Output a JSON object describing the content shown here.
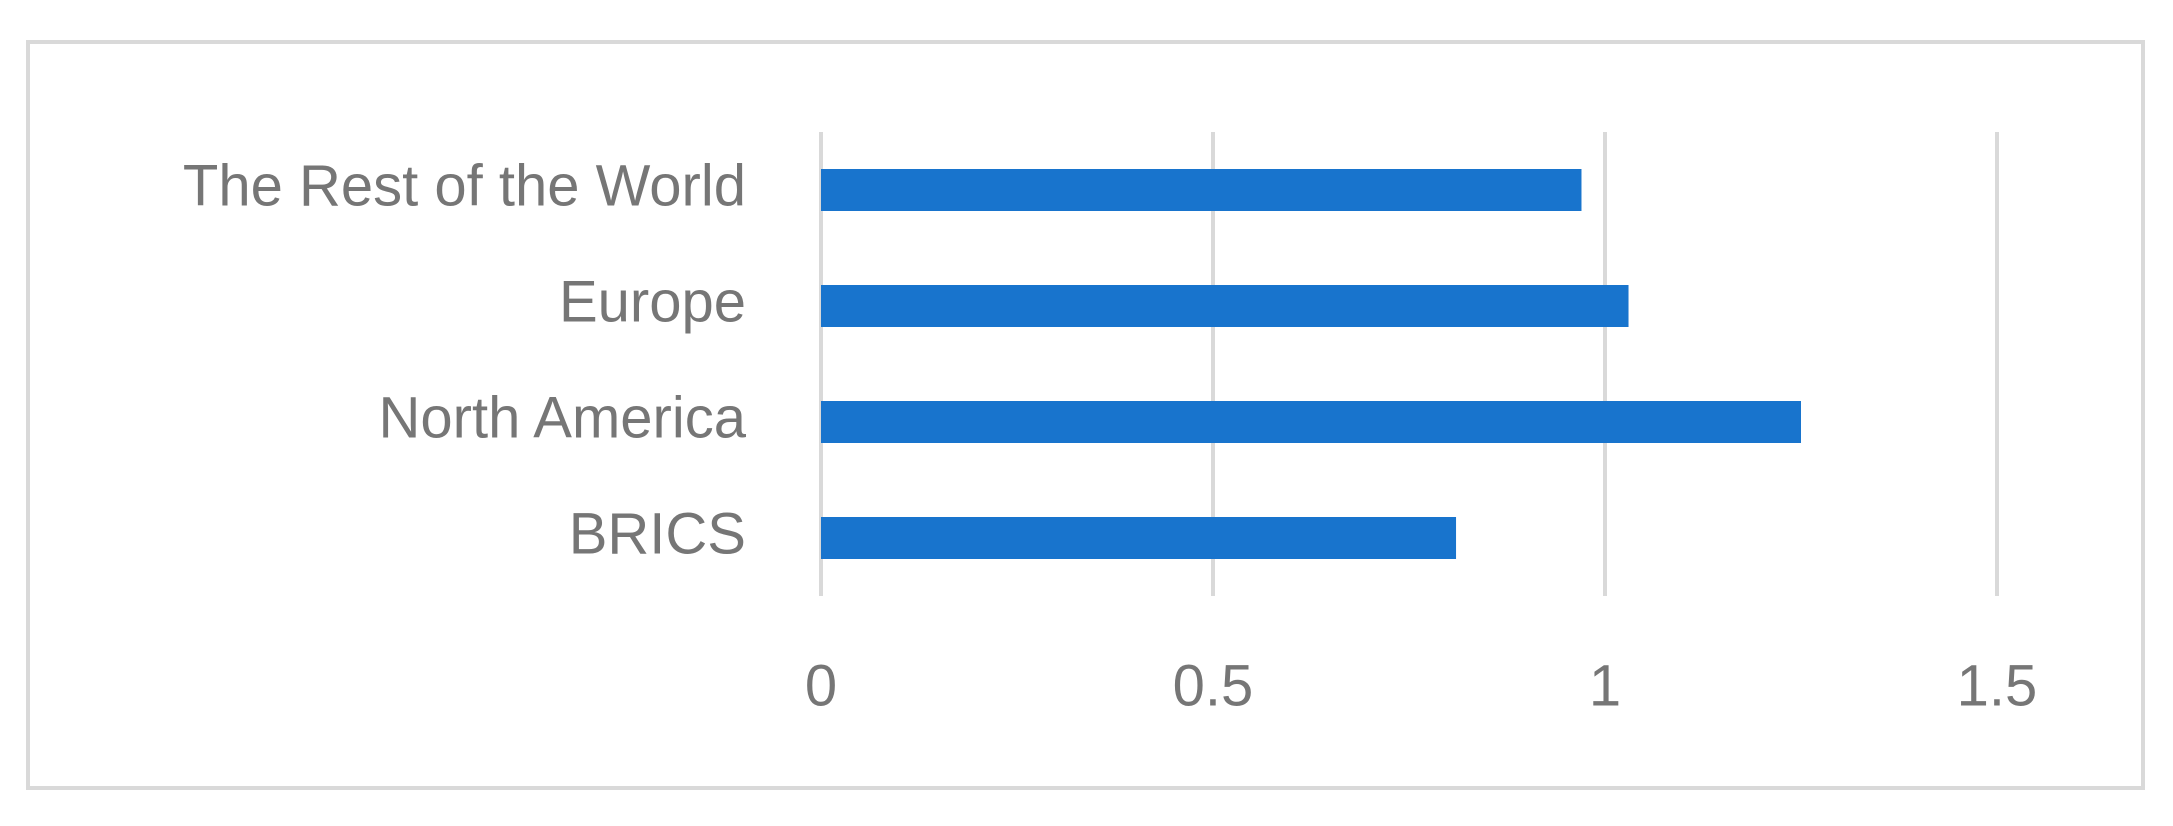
{
  "chart_data": {
    "type": "bar",
    "orientation": "horizontal",
    "categories": [
      "BRICS",
      "North America",
      "Europe",
      "The Rest of the World"
    ],
    "values": [
      0.81,
      1.25,
      1.03,
      0.97
    ],
    "color": "#1874cd",
    "xlim": [
      0,
      1.5
    ],
    "xticks": [
      0,
      0.5,
      1,
      1.5
    ],
    "grid": true
  }
}
